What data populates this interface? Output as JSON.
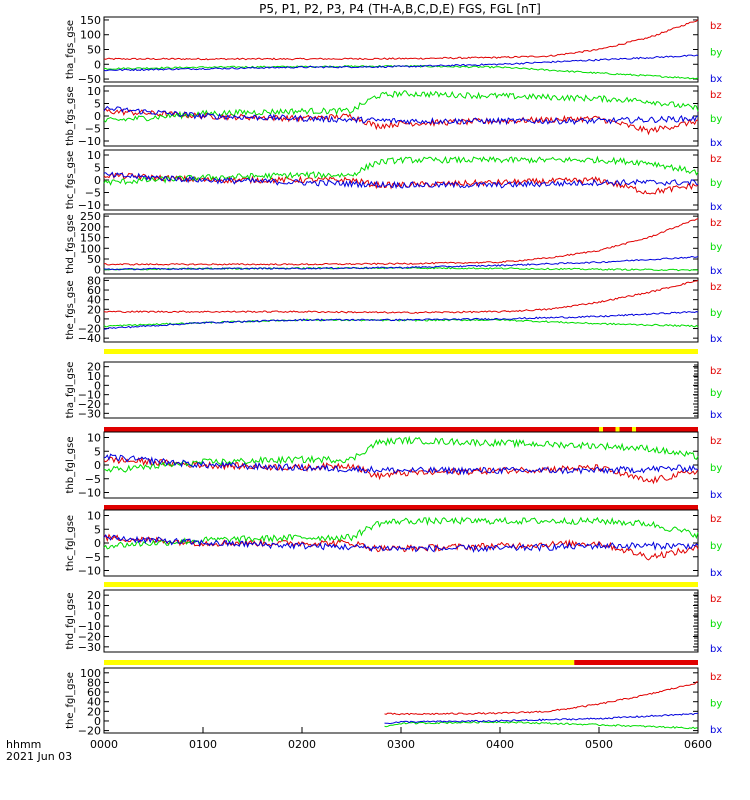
{
  "title": "P5, P1, P2, P3, P4 (TH-A,B,C,D,E) FGS, FGL [nT]",
  "footer": {
    "axis_label": "hhmm",
    "date": "2021 Jun 03"
  },
  "colors": {
    "bz": "#e00000",
    "by": "#00dd00",
    "bx": "#0000dd",
    "bar_yellow": "#ffff00",
    "bar_red": "#e00000"
  },
  "chart_data": {
    "type": "line",
    "x_unit": "hhmm",
    "x_ticks": [
      "0000",
      "0100",
      "0200",
      "0300",
      "0400",
      "0500",
      "0600"
    ],
    "xlim": [
      "0000",
      "0600"
    ],
    "panels": [
      {
        "ylabel": "tha_fgs_gse",
        "yticks": [
          150,
          100,
          50,
          0,
          -50
        ],
        "ylim": [
          -60,
          160
        ],
        "legend": [
          "bz",
          "by",
          "bx"
        ],
        "series": [
          {
            "name": "bz",
            "x": [
              "0000",
              "0100",
              "0200",
              "0300",
              "0400",
              "0430",
              "0500",
              "0530",
              "0600"
            ],
            "y": [
              18,
              18,
              18,
              19,
              23,
              28,
              50,
              90,
              150
            ]
          },
          {
            "name": "by",
            "x": [
              "0000",
              "0100",
              "0200",
              "0300",
              "0400",
              "0500",
              "0600"
            ],
            "y": [
              -15,
              -10,
              -8,
              -6,
              -10,
              -30,
              -48
            ]
          },
          {
            "name": "bx",
            "x": [
              "0000",
              "0100",
              "0200",
              "0300",
              "0400",
              "0500",
              "0600"
            ],
            "y": [
              -20,
              -15,
              -10,
              -8,
              0,
              15,
              30
            ]
          }
        ]
      },
      {
        "ylabel": "thb_fgs_gse",
        "yticks": [
          10,
          5,
          0,
          -5,
          -10
        ],
        "ylim": [
          -12,
          12
        ],
        "legend": [
          "bz",
          "by",
          "bx"
        ],
        "series": [
          {
            "name": "bz",
            "x": [
              "0000",
              "0100",
              "0200",
              "0230",
              "0245",
              "0300",
              "0400",
              "0500",
              "0530",
              "0600"
            ],
            "y": [
              2,
              0,
              -1,
              0,
              -4,
              -3,
              -2,
              -1,
              -6,
              -2
            ]
          },
          {
            "name": "by",
            "x": [
              "0000",
              "0100",
              "0200",
              "0230",
              "0245",
              "0300",
              "0400",
              "0500",
              "0530",
              "0600"
            ],
            "y": [
              -2,
              1,
              2,
              2,
              8,
              9,
              8,
              7,
              6,
              3
            ]
          },
          {
            "name": "bx",
            "x": [
              "0000",
              "0100",
              "0200",
              "0300",
              "0400",
              "0500",
              "0600"
            ],
            "y": [
              3,
              0,
              -1,
              -2,
              -2,
              -2,
              -1
            ]
          }
        ]
      },
      {
        "ylabel": "thc_fgs_gse",
        "yticks": [
          10,
          5,
          0,
          -5,
          -10
        ],
        "ylim": [
          -12,
          12
        ],
        "legend": [
          "bz",
          "by",
          "bx"
        ],
        "series": [
          {
            "name": "bz",
            "x": [
              "0000",
              "0100",
              "0200",
              "0230",
              "0245",
              "0300",
              "0400",
              "0500",
              "0530",
              "0600"
            ],
            "y": [
              2,
              0,
              0,
              0,
              -2,
              -2,
              -1,
              0,
              -5,
              -2
            ]
          },
          {
            "name": "by",
            "x": [
              "0000",
              "0100",
              "0200",
              "0230",
              "0245",
              "0300",
              "0400",
              "0500",
              "0530",
              "0600"
            ],
            "y": [
              -1,
              1,
              2,
              2,
              7,
              8,
              8,
              8,
              7,
              3
            ]
          },
          {
            "name": "bx",
            "x": [
              "0000",
              "0100",
              "0200",
              "0300",
              "0400",
              "0500",
              "0600"
            ],
            "y": [
              2,
              0,
              -1,
              -2,
              -2,
              -1,
              -1
            ]
          }
        ]
      },
      {
        "ylabel": "thd_fgs_gse",
        "yticks": [
          250,
          200,
          150,
          100,
          50,
          0
        ],
        "ylim": [
          -20,
          260
        ],
        "legend": [
          "bz",
          "by",
          "bx"
        ],
        "series": [
          {
            "name": "bz",
            "x": [
              "0000",
              "0100",
              "0200",
              "0300",
              "0400",
              "0430",
              "0500",
              "0530",
              "0600"
            ],
            "y": [
              25,
              25,
              25,
              28,
              35,
              55,
              90,
              150,
              240
            ]
          },
          {
            "name": "by",
            "x": [
              "0000",
              "0100",
              "0200",
              "0300",
              "0400",
              "0500",
              "0600"
            ],
            "y": [
              0,
              5,
              7,
              8,
              6,
              2,
              -2
            ]
          },
          {
            "name": "bx",
            "x": [
              "0000",
              "0100",
              "0200",
              "0300",
              "0400",
              "0500",
              "0600"
            ],
            "y": [
              2,
              5,
              6,
              10,
              20,
              35,
              60
            ]
          }
        ]
      },
      {
        "ylabel": "the_fgs_gse",
        "yticks": [
          80,
          60,
          40,
          20,
          0,
          -20,
          -40
        ],
        "ylim": [
          -48,
          85
        ],
        "legend": [
          "bz",
          "by",
          "bx"
        ],
        "series": [
          {
            "name": "bz",
            "x": [
              "0000",
              "0100",
              "0200",
              "0300",
              "0400",
              "0430",
              "0500",
              "0530",
              "0600"
            ],
            "y": [
              15,
              15,
              15,
              13,
              15,
              20,
              35,
              55,
              80
            ]
          },
          {
            "name": "by",
            "x": [
              "0000",
              "0100",
              "0200",
              "0300",
              "0400",
              "0500",
              "0600"
            ],
            "y": [
              -15,
              -8,
              -2,
              -3,
              -2,
              -10,
              -15
            ]
          },
          {
            "name": "bx",
            "x": [
              "0000",
              "0100",
              "0200",
              "0300",
              "0400",
              "0500",
              "0600"
            ],
            "y": [
              -20,
              -8,
              -2,
              -2,
              0,
              5,
              15
            ]
          }
        ]
      },
      {
        "ylabel": "tha_fgl_gse",
        "yticks": [
          20,
          10,
          0,
          -10,
          -20,
          -30
        ],
        "ylim": [
          -35,
          25
        ],
        "legend": [
          "bz",
          "by",
          "bx"
        ],
        "bar": "yellow",
        "series": []
      },
      {
        "ylabel": "thb_fgl_gse",
        "yticks": [
          10,
          5,
          0,
          -5,
          -10
        ],
        "ylim": [
          -12,
          12
        ],
        "legend": [
          "bz",
          "by",
          "bx"
        ],
        "bar": "red",
        "series": [
          {
            "name": "bz",
            "x": [
              "0000",
              "0100",
              "0200",
              "0230",
              "0245",
              "0300",
              "0400",
              "0500",
              "0530",
              "0600"
            ],
            "y": [
              2,
              0,
              -1,
              0,
              -4,
              -3,
              -2,
              -1,
              -6,
              -2
            ]
          },
          {
            "name": "by",
            "x": [
              "0000",
              "0100",
              "0200",
              "0230",
              "0245",
              "0300",
              "0400",
              "0500",
              "0530",
              "0600"
            ],
            "y": [
              -2,
              1,
              2,
              2,
              8,
              9,
              8,
              7,
              6,
              3
            ]
          },
          {
            "name": "bx",
            "x": [
              "0000",
              "0100",
              "0200",
              "0300",
              "0400",
              "0500",
              "0600"
            ],
            "y": [
              3,
              0,
              -1,
              -2,
              -2,
              -2,
              -1
            ]
          }
        ]
      },
      {
        "ylabel": "thc_fgl_gse",
        "yticks": [
          10,
          5,
          0,
          -5,
          -10
        ],
        "ylim": [
          -12,
          12
        ],
        "legend": [
          "bz",
          "by",
          "bx"
        ],
        "bar": "red",
        "series": [
          {
            "name": "bz",
            "x": [
              "0000",
              "0100",
              "0200",
              "0230",
              "0245",
              "0300",
              "0400",
              "0500",
              "0530",
              "0600"
            ],
            "y": [
              2,
              0,
              0,
              0,
              -2,
              -2,
              -1,
              0,
              -5,
              -2
            ]
          },
          {
            "name": "by",
            "x": [
              "0000",
              "0100",
              "0200",
              "0230",
              "0245",
              "0300",
              "0400",
              "0500",
              "0530",
              "0600"
            ],
            "y": [
              -1,
              1,
              2,
              2,
              7,
              8,
              8,
              8,
              7,
              3
            ]
          },
          {
            "name": "bx",
            "x": [
              "0000",
              "0100",
              "0200",
              "0300",
              "0400",
              "0500",
              "0600"
            ],
            "y": [
              2,
              0,
              -1,
              -2,
              -2,
              -1,
              -1
            ]
          }
        ]
      },
      {
        "ylabel": "thd_fgl_gse",
        "yticks": [
          20,
          10,
          0,
          -10,
          -20,
          -30
        ],
        "ylim": [
          -35,
          25
        ],
        "legend": [
          "bz",
          "by",
          "bx"
        ],
        "bar": "yellow",
        "series": []
      },
      {
        "ylabel": "the_fgl_gse",
        "yticks": [
          100,
          80,
          60,
          40,
          20,
          0,
          -20
        ],
        "ylim": [
          -25,
          110
        ],
        "legend": [
          "bz",
          "by",
          "bx"
        ],
        "bar": "yellow-red",
        "series": [
          {
            "name": "bz",
            "x": [
              "0250",
              "0300",
              "0400",
              "0430",
              "0500",
              "0530",
              "0600"
            ],
            "y": [
              15,
              14,
              16,
              20,
              35,
              55,
              80
            ]
          },
          {
            "name": "by",
            "x": [
              "0250",
              "0300",
              "0400",
              "0500",
              "0600"
            ],
            "y": [
              -12,
              -5,
              -2,
              -8,
              -15
            ]
          },
          {
            "name": "bx",
            "x": [
              "0250",
              "0300",
              "0400",
              "0500",
              "0600"
            ],
            "y": [
              -5,
              -2,
              0,
              5,
              15
            ]
          }
        ]
      }
    ]
  }
}
